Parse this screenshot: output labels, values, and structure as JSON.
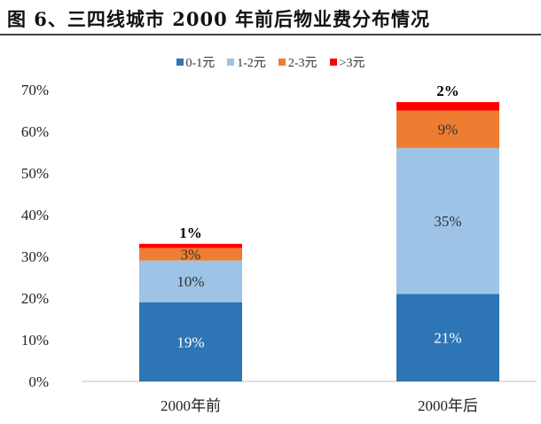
{
  "title": "图 6、三四线城市 2000 年前后物业费分布情况",
  "chart_data": {
    "type": "stacked-bar",
    "title": "",
    "xlabel": "",
    "ylabel": "",
    "categories": [
      "2000年前",
      "2000年后"
    ],
    "ylim": [
      0,
      70
    ],
    "yticks": [
      "0%",
      "10%",
      "20%",
      "30%",
      "40%",
      "50%",
      "60%",
      "70%"
    ],
    "grid": false,
    "legend_position": "top",
    "series": [
      {
        "name": "0-1元",
        "color": "#2E75B6",
        "values": [
          19,
          21
        ],
        "labels": [
          "19%",
          "21%"
        ],
        "label_color": "#ffffff"
      },
      {
        "name": "1-2元",
        "color": "#9DC3E6",
        "values": [
          10,
          35
        ],
        "labels": [
          "10%",
          "35%"
        ],
        "label_color": "#333333"
      },
      {
        "name": "2-3元",
        "color": "#ED7D31",
        "values": [
          3,
          9
        ],
        "labels": [
          "3%",
          "9%"
        ],
        "label_color": "#333333"
      },
      {
        "name": ">3元",
        "color": "#FF0000",
        "values": [
          1,
          2
        ],
        "labels": [
          "1%",
          "2%"
        ],
        "label_color": "#000000"
      }
    ]
  }
}
